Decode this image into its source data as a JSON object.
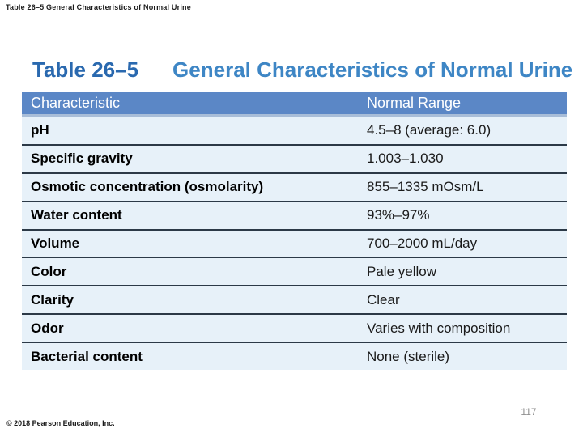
{
  "slide": {
    "top_title": "Table 26–5 General Characteristics of Normal Urine",
    "footer_copyright": "© 2018 Pearson Education, Inc.",
    "page_number": "117"
  },
  "table": {
    "title_number": "Table 26–5",
    "title_text": "General Characteristics of Normal Urine",
    "columns": [
      "Characteristic",
      "Normal Range"
    ],
    "rows": [
      {
        "characteristic": "pH",
        "normal_range": "4.5–8 (average: 6.0)"
      },
      {
        "characteristic": "Specific gravity",
        "normal_range": "1.003–1.030"
      },
      {
        "characteristic": "Osmotic concentration (osmolarity)",
        "normal_range": "855–1335 mOsm/L"
      },
      {
        "characteristic": "Water content",
        "normal_range": "93%–97%"
      },
      {
        "characteristic": "Volume",
        "normal_range": "700–2000 mL/day"
      },
      {
        "characteristic": "Color",
        "normal_range": "Pale yellow"
      },
      {
        "characteristic": "Clarity",
        "normal_range": "Clear"
      },
      {
        "characteristic": "Odor",
        "normal_range": "Varies with composition"
      },
      {
        "characteristic": "Bacterial content",
        "normal_range": "None (sterile)"
      }
    ]
  },
  "colors": {
    "header_band": "#5b87c6",
    "header_bevel": "#a8bdd8",
    "row_background": "#e7f1f9",
    "row_separator": "#2c3947",
    "title_number_blue": "#2a69af",
    "title_text_blue": "#3e86c5",
    "page_number_grey": "#8f8f8f"
  }
}
